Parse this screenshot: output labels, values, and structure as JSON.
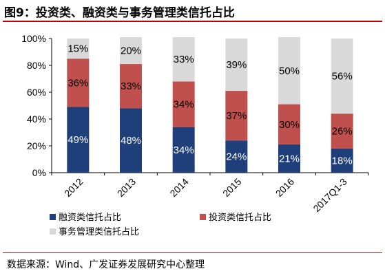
{
  "title": "图9：投资类、融资类与事务管理类信托占比",
  "source": "数据来源：Wind、广发证券发展研究中心整理",
  "chart_data": {
    "type": "bar",
    "stacked": true,
    "percent": true,
    "categories": [
      "2012",
      "2013",
      "2014",
      "2015",
      "2016",
      "2017Q1-3"
    ],
    "ylim": [
      0,
      100
    ],
    "yticks": [
      "0%",
      "20%",
      "40%",
      "60%",
      "80%",
      "100%"
    ],
    "grid": false,
    "legend_position": "bottom",
    "series": [
      {
        "name": "融资类信托占比",
        "color": "#1f3f7a",
        "label_color": "#ffffff",
        "values": [
          49,
          48,
          34,
          24,
          21,
          18
        ],
        "labels": [
          "49%",
          "48%",
          "34%",
          "24%",
          "21%",
          "18%"
        ]
      },
      {
        "name": "投资类信托占比",
        "color": "#c0504d",
        "label_color": "#000000",
        "values": [
          36,
          33,
          34,
          37,
          30,
          26
        ],
        "labels": [
          "36%",
          "33%",
          "34%",
          "37%",
          "30%",
          "26%"
        ]
      },
      {
        "name": "事务管理类信托占比",
        "color": "#d9d9d9",
        "label_color": "#000000",
        "values": [
          15,
          20,
          33,
          39,
          50,
          56
        ],
        "labels": [
          "15%",
          "20%",
          "33%",
          "39%",
          "50%",
          "56%"
        ]
      }
    ]
  }
}
